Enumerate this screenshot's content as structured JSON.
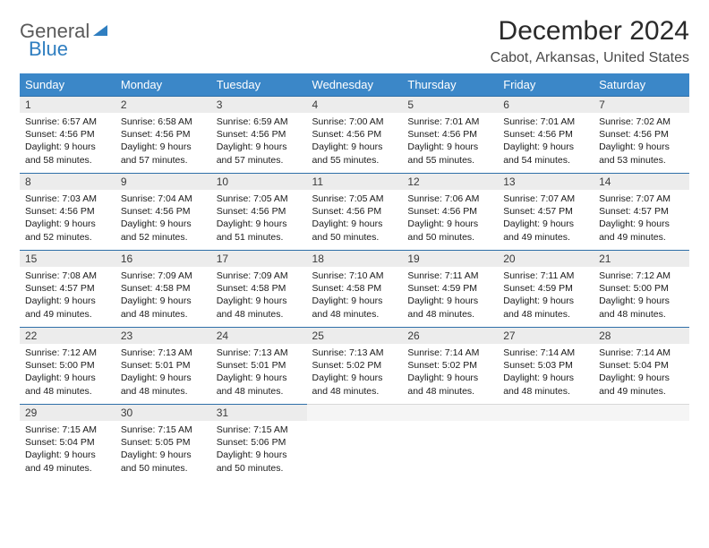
{
  "logo": {
    "line1": "General",
    "line2": "Blue"
  },
  "title": "December 2024",
  "location": "Cabot, Arkansas, United States",
  "colors": {
    "header_bg": "#3b87c8",
    "header_text": "#ffffff",
    "daynum_bg": "#ececec",
    "daynum_border": "#2f6fa8",
    "logo_gray": "#5a5a5a",
    "logo_blue": "#2f7ec0"
  },
  "weekdays": [
    "Sunday",
    "Monday",
    "Tuesday",
    "Wednesday",
    "Thursday",
    "Friday",
    "Saturday"
  ],
  "weeks": [
    [
      {
        "n": "1",
        "sr": "6:57 AM",
        "ss": "4:56 PM",
        "dl": "9 hours and 58 minutes."
      },
      {
        "n": "2",
        "sr": "6:58 AM",
        "ss": "4:56 PM",
        "dl": "9 hours and 57 minutes."
      },
      {
        "n": "3",
        "sr": "6:59 AM",
        "ss": "4:56 PM",
        "dl": "9 hours and 57 minutes."
      },
      {
        "n": "4",
        "sr": "7:00 AM",
        "ss": "4:56 PM",
        "dl": "9 hours and 55 minutes."
      },
      {
        "n": "5",
        "sr": "7:01 AM",
        "ss": "4:56 PM",
        "dl": "9 hours and 55 minutes."
      },
      {
        "n": "6",
        "sr": "7:01 AM",
        "ss": "4:56 PM",
        "dl": "9 hours and 54 minutes."
      },
      {
        "n": "7",
        "sr": "7:02 AM",
        "ss": "4:56 PM",
        "dl": "9 hours and 53 minutes."
      }
    ],
    [
      {
        "n": "8",
        "sr": "7:03 AM",
        "ss": "4:56 PM",
        "dl": "9 hours and 52 minutes."
      },
      {
        "n": "9",
        "sr": "7:04 AM",
        "ss": "4:56 PM",
        "dl": "9 hours and 52 minutes."
      },
      {
        "n": "10",
        "sr": "7:05 AM",
        "ss": "4:56 PM",
        "dl": "9 hours and 51 minutes."
      },
      {
        "n": "11",
        "sr": "7:05 AM",
        "ss": "4:56 PM",
        "dl": "9 hours and 50 minutes."
      },
      {
        "n": "12",
        "sr": "7:06 AM",
        "ss": "4:56 PM",
        "dl": "9 hours and 50 minutes."
      },
      {
        "n": "13",
        "sr": "7:07 AM",
        "ss": "4:57 PM",
        "dl": "9 hours and 49 minutes."
      },
      {
        "n": "14",
        "sr": "7:07 AM",
        "ss": "4:57 PM",
        "dl": "9 hours and 49 minutes."
      }
    ],
    [
      {
        "n": "15",
        "sr": "7:08 AM",
        "ss": "4:57 PM",
        "dl": "9 hours and 49 minutes."
      },
      {
        "n": "16",
        "sr": "7:09 AM",
        "ss": "4:58 PM",
        "dl": "9 hours and 48 minutes."
      },
      {
        "n": "17",
        "sr": "7:09 AM",
        "ss": "4:58 PM",
        "dl": "9 hours and 48 minutes."
      },
      {
        "n": "18",
        "sr": "7:10 AM",
        "ss": "4:58 PM",
        "dl": "9 hours and 48 minutes."
      },
      {
        "n": "19",
        "sr": "7:11 AM",
        "ss": "4:59 PM",
        "dl": "9 hours and 48 minutes."
      },
      {
        "n": "20",
        "sr": "7:11 AM",
        "ss": "4:59 PM",
        "dl": "9 hours and 48 minutes."
      },
      {
        "n": "21",
        "sr": "7:12 AM",
        "ss": "5:00 PM",
        "dl": "9 hours and 48 minutes."
      }
    ],
    [
      {
        "n": "22",
        "sr": "7:12 AM",
        "ss": "5:00 PM",
        "dl": "9 hours and 48 minutes."
      },
      {
        "n": "23",
        "sr": "7:13 AM",
        "ss": "5:01 PM",
        "dl": "9 hours and 48 minutes."
      },
      {
        "n": "24",
        "sr": "7:13 AM",
        "ss": "5:01 PM",
        "dl": "9 hours and 48 minutes."
      },
      {
        "n": "25",
        "sr": "7:13 AM",
        "ss": "5:02 PM",
        "dl": "9 hours and 48 minutes."
      },
      {
        "n": "26",
        "sr": "7:14 AM",
        "ss": "5:02 PM",
        "dl": "9 hours and 48 minutes."
      },
      {
        "n": "27",
        "sr": "7:14 AM",
        "ss": "5:03 PM",
        "dl": "9 hours and 48 minutes."
      },
      {
        "n": "28",
        "sr": "7:14 AM",
        "ss": "5:04 PM",
        "dl": "9 hours and 49 minutes."
      }
    ],
    [
      {
        "n": "29",
        "sr": "7:15 AM",
        "ss": "5:04 PM",
        "dl": "9 hours and 49 minutes."
      },
      {
        "n": "30",
        "sr": "7:15 AM",
        "ss": "5:05 PM",
        "dl": "9 hours and 50 minutes."
      },
      {
        "n": "31",
        "sr": "7:15 AM",
        "ss": "5:06 PM",
        "dl": "9 hours and 50 minutes."
      },
      null,
      null,
      null,
      null
    ]
  ],
  "labels": {
    "sunrise": "Sunrise:",
    "sunset": "Sunset:",
    "daylight": "Daylight:"
  }
}
